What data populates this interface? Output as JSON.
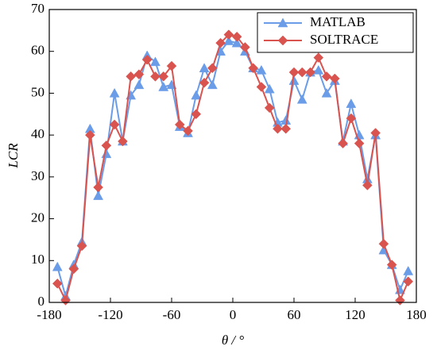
{
  "chart_data": {
    "type": "line",
    "xlabel": "θ / °",
    "ylabel": "LCR",
    "x": [
      -172,
      -164,
      -156,
      -148,
      -140,
      -132,
      -124,
      -116,
      -108,
      -100,
      -92,
      -84,
      -76,
      -68,
      -60,
      -52,
      -44,
      -36,
      -28,
      -20,
      -12,
      -4,
      4,
      12,
      20,
      28,
      36,
      44,
      52,
      60,
      68,
      76,
      84,
      92,
      100,
      108,
      116,
      124,
      132,
      140,
      148,
      156,
      164,
      172
    ],
    "series": [
      {
        "name": "MATLAB",
        "color": "#6a9ce8",
        "marker": "triangle",
        "values": [
          8.5,
          1.5,
          9,
          14.5,
          41.5,
          25.5,
          35.5,
          50,
          38.5,
          49.5,
          52,
          59,
          57.5,
          51.5,
          52,
          42,
          40.5,
          49.5,
          56,
          52,
          60,
          62.5,
          62,
          60,
          56,
          55.5,
          51,
          43,
          43.5,
          53,
          48.5,
          55,
          55.5,
          50,
          53,
          38.5,
          47.5,
          40,
          29.5,
          40,
          12.5,
          9,
          3,
          7.5
        ]
      },
      {
        "name": "SOLTRACE",
        "color": "#d9534f",
        "marker": "diamond",
        "values": [
          4.5,
          0.5,
          8,
          13.5,
          40,
          27.5,
          37.5,
          42.5,
          38.5,
          54,
          54.5,
          58,
          54,
          54,
          56.5,
          42.5,
          41,
          45,
          52.5,
          56,
          62,
          64,
          63.5,
          61,
          56,
          51.5,
          46.5,
          41.5,
          41.5,
          55,
          55,
          55,
          58.5,
          54,
          53.5,
          38,
          44,
          38,
          28,
          40.5,
          14,
          9,
          0.5,
          5
        ]
      }
    ],
    "xlim": [
      -180,
      180
    ],
    "xticks": [
      -180,
      -120,
      -60,
      0,
      60,
      120,
      180
    ],
    "ylim": [
      0,
      70
    ],
    "yticks": [
      0,
      10,
      20,
      30,
      40,
      50,
      60,
      70
    ],
    "legend": "upper right"
  }
}
